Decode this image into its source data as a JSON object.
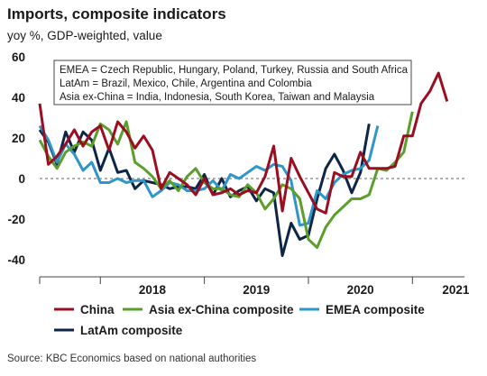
{
  "title": "Imports, composite indicators",
  "subtitle": "yoy %, GDP-weighted, value",
  "source": "Source: KBC Economics based on national authorities",
  "note_lines": [
    "EMEA = Czech Republic, Hungary, Poland, Turkey, Russia and South Africa",
    "LatAm = Brazil, Mexico, Chile, Argentina and Colombia",
    "Asia ex-China = India, Indonesia, South Korea, Taiwan and Malaysia"
  ],
  "chart_data": {
    "type": "line",
    "ylim": [
      -45,
      60
    ],
    "yticks": [
      60,
      40,
      20,
      0,
      -20,
      -40
    ],
    "x_range": [
      "2017-06",
      "2021-07"
    ],
    "xtick_labels": [
      "2018",
      "2019",
      "2020",
      "2021"
    ],
    "grid": false,
    "legend_position": "bottom",
    "series": [
      {
        "name": "China",
        "color": "#9b0d20",
        "start": "2017-06",
        "values": [
          37,
          7,
          11,
          17,
          24,
          16,
          23,
          26,
          14,
          28,
          23,
          15,
          21,
          14,
          -5,
          3,
          0,
          -3,
          -8,
          0,
          -8,
          -7,
          -5,
          -8,
          -6,
          -7,
          1,
          16,
          -16,
          10,
          1,
          -7,
          -15,
          -17,
          3,
          1,
          1,
          13,
          5,
          5,
          5,
          6,
          21,
          21,
          37,
          43,
          52,
          38
        ]
      },
      {
        "name": "Asia ex-China composite",
        "color": "#5c9e2b",
        "start": "2017-06",
        "values": [
          19,
          11,
          5,
          13,
          16,
          18,
          16,
          27,
          24,
          17,
          28,
          8,
          5,
          1,
          -5,
          -1,
          -6,
          1,
          5,
          -2,
          -5,
          -5,
          -8,
          -9,
          -3,
          -7,
          -15,
          -10,
          -3,
          -5,
          -10,
          -30,
          -34,
          -24,
          -18,
          -14,
          -10,
          -10,
          -8,
          5,
          4,
          8,
          13,
          33
        ]
      },
      {
        "name": "EMEA composite",
        "color": "#2e96c8",
        "start": "2017-06",
        "values": [
          26,
          19,
          8,
          17,
          12,
          4,
          8,
          -2,
          -2,
          0,
          -2,
          -1,
          -1,
          -9,
          -6,
          -2,
          -3,
          -6,
          -6,
          -5,
          -1,
          -6,
          2,
          0,
          3,
          6,
          4,
          7,
          6,
          -1,
          -23,
          -22,
          -6,
          -10,
          -2,
          2,
          4,
          5,
          9,
          26
        ]
      },
      {
        "name": "LatAm composite",
        "color": "#0e2547",
        "start": "2017-06",
        "values": [
          24,
          18,
          7,
          23,
          13,
          23,
          19,
          4,
          15,
          3,
          4,
          -5,
          -1,
          -2,
          -3,
          -5,
          -4,
          -4,
          -5,
          2,
          -8,
          0,
          -9,
          -6,
          -4,
          -11,
          -5,
          -7,
          -38,
          -22,
          -30,
          -28,
          -10,
          5,
          12,
          4,
          -7,
          3,
          27
        ]
      }
    ]
  },
  "legend": {
    "items": [
      "China",
      "Asia ex-China composite",
      "EMEA composite",
      "LatAm composite"
    ]
  }
}
